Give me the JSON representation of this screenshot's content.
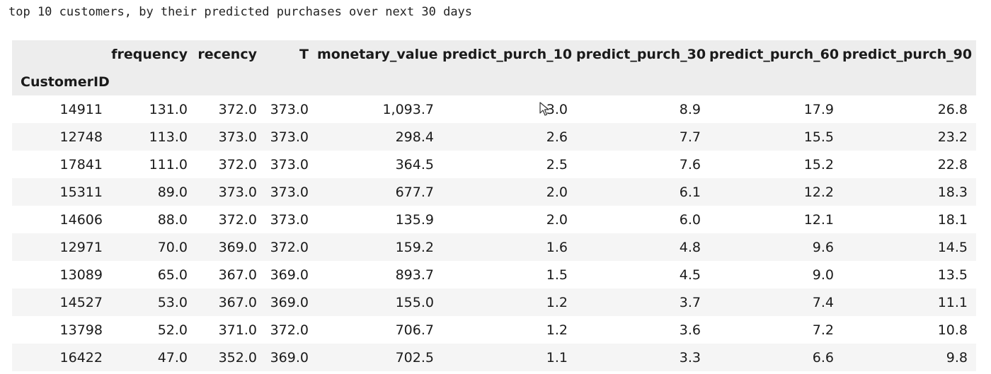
{
  "caption": "top 10 customers, by their predicted purchases over next 30 days",
  "index_name": "CustomerID",
  "columns": [
    "frequency",
    "recency",
    "T",
    "monetary_value",
    "predict_purch_10",
    "predict_purch_30",
    "predict_purch_60",
    "predict_purch_90"
  ],
  "rows": [
    {
      "id": "14911",
      "cells": [
        "131.0",
        "372.0",
        "373.0",
        "1,093.7",
        "3.0",
        "8.9",
        "17.9",
        "26.8"
      ]
    },
    {
      "id": "12748",
      "cells": [
        "113.0",
        "373.0",
        "373.0",
        "298.4",
        "2.6",
        "7.7",
        "15.5",
        "23.2"
      ]
    },
    {
      "id": "17841",
      "cells": [
        "111.0",
        "372.0",
        "373.0",
        "364.5",
        "2.5",
        "7.6",
        "15.2",
        "22.8"
      ]
    },
    {
      "id": "15311",
      "cells": [
        "89.0",
        "373.0",
        "373.0",
        "677.7",
        "2.0",
        "6.1",
        "12.2",
        "18.3"
      ]
    },
    {
      "id": "14606",
      "cells": [
        "88.0",
        "372.0",
        "373.0",
        "135.9",
        "2.0",
        "6.0",
        "12.1",
        "18.1"
      ]
    },
    {
      "id": "12971",
      "cells": [
        "70.0",
        "369.0",
        "372.0",
        "159.2",
        "1.6",
        "4.8",
        "9.6",
        "14.5"
      ]
    },
    {
      "id": "13089",
      "cells": [
        "65.0",
        "367.0",
        "369.0",
        "893.7",
        "1.5",
        "4.5",
        "9.0",
        "13.5"
      ]
    },
    {
      "id": "14527",
      "cells": [
        "53.0",
        "367.0",
        "369.0",
        "155.0",
        "1.2",
        "3.7",
        "7.4",
        "11.1"
      ]
    },
    {
      "id": "13798",
      "cells": [
        "52.0",
        "371.0",
        "372.0",
        "706.7",
        "1.2",
        "3.6",
        "7.2",
        "10.8"
      ]
    },
    {
      "id": "16422",
      "cells": [
        "47.0",
        "352.0",
        "369.0",
        "702.5",
        "1.1",
        "3.3",
        "6.6",
        "9.8"
      ]
    }
  ],
  "icons": {
    "cursor": "mouse-pointer-icon"
  }
}
